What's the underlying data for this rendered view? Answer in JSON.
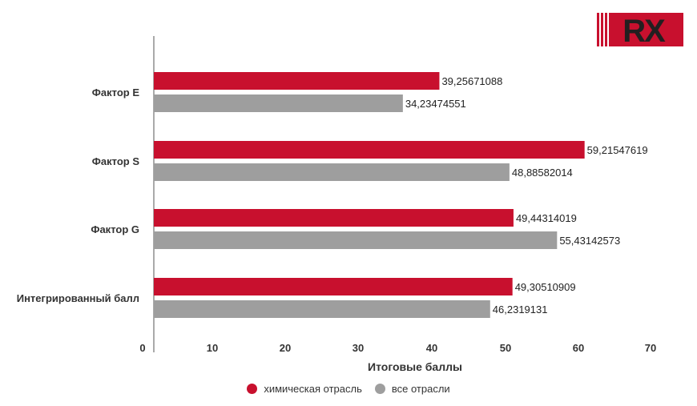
{
  "logo": {
    "text": "RX",
    "colors": {
      "red": "#C8102E",
      "dark": "#231F20"
    }
  },
  "chart_data": {
    "type": "bar",
    "orientation": "horizontal",
    "categories": [
      "Фактор E",
      "Фактор S",
      "Фактор G",
      "Интегрированный балл"
    ],
    "series": [
      {
        "name": "химическая отрасль",
        "color": "#C8102E",
        "values": [
          39.25671088,
          59.21547619,
          49.44314019,
          49.30510909
        ],
        "labels": [
          "39,25671088",
          "59,21547619",
          "49,44314019",
          "49,30510909"
        ]
      },
      {
        "name": "все отрасли",
        "color": "#9E9E9E",
        "values": [
          34.23474551,
          48.88582014,
          55.43142573,
          46.2319131
        ],
        "labels": [
          "34,23474551",
          "48,88582014",
          "55,43142573",
          "46,2319131"
        ]
      }
    ],
    "xlabel": "Итоговые баллы",
    "xlim": [
      0,
      70
    ],
    "xticks": [
      "0",
      "10",
      "20",
      "30",
      "40",
      "50",
      "60",
      "70"
    ],
    "grid": false,
    "legend_position": "bottom"
  }
}
